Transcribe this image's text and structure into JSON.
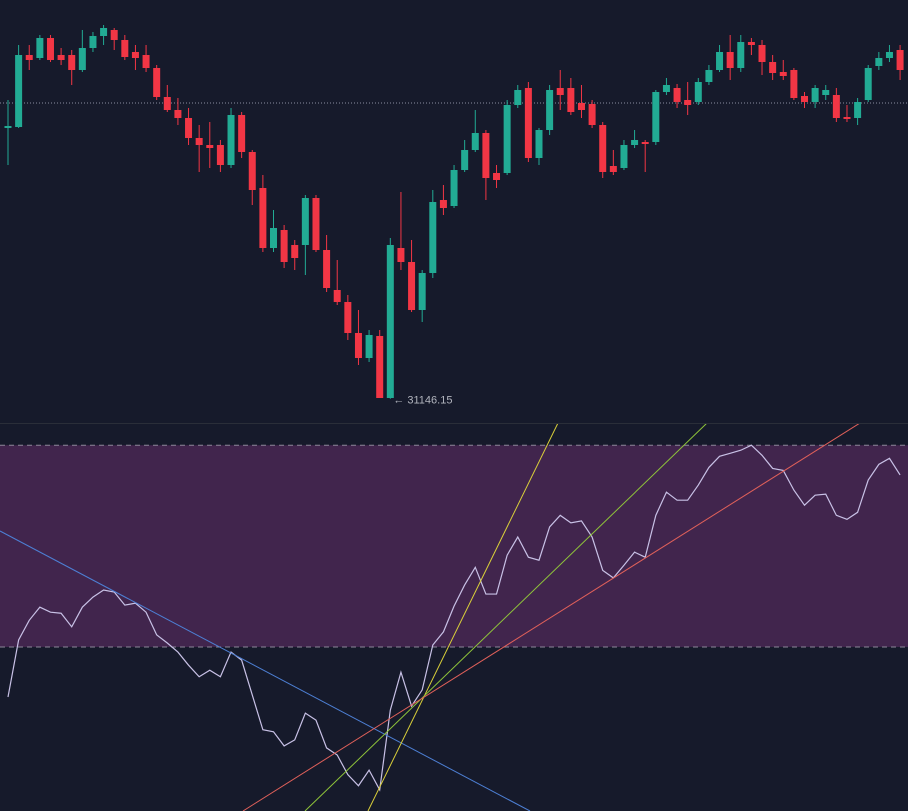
{
  "chart_data": [
    {
      "type": "candlestick",
      "up_color": "#22ab94",
      "down_color": "#f23645",
      "ylim": [
        31025,
        33140
      ],
      "price_line": 32625,
      "annotation": "← 31146.15",
      "open": [
        32500,
        32505,
        32865,
        32850,
        32950,
        32865,
        32865,
        32790,
        32900,
        32960,
        32990,
        32940,
        32880,
        32865,
        32800,
        32655,
        32590,
        32550,
        32450,
        32415,
        32415,
        32315,
        32565,
        32380,
        32200,
        31900,
        31990,
        31915,
        31915,
        32150,
        31890,
        31690,
        31630,
        31475,
        31350,
        31460,
        31150,
        31900,
        31830,
        31590,
        31775,
        32140,
        32110,
        32290,
        32390,
        32475,
        32275,
        32275,
        32615,
        32700,
        32350,
        32490,
        32700,
        32700,
        32625,
        32620,
        32515,
        32310,
        32300,
        32415,
        32430,
        32430,
        32680,
        32700,
        32640,
        32630,
        32730,
        32790,
        32880,
        32800,
        32930,
        32915,
        32830,
        32780,
        32790,
        32660,
        32630,
        32665,
        32665,
        32555,
        32550,
        32640,
        32810,
        32850,
        32890
      ],
      "high": [
        32640,
        32915,
        32915,
        32965,
        32965,
        32900,
        32890,
        32990,
        32980,
        33015,
        33000,
        32965,
        32915,
        32915,
        32815,
        32715,
        32650,
        32600,
        32515,
        32530,
        32440,
        32600,
        32580,
        32390,
        32265,
        32090,
        32015,
        31940,
        32165,
        32165,
        31965,
        31840,
        31665,
        31590,
        31490,
        31490,
        31950,
        32180,
        31940,
        31790,
        32190,
        32215,
        32315,
        32440,
        32590,
        32490,
        32315,
        32640,
        32715,
        32730,
        32500,
        32715,
        32790,
        32750,
        32715,
        32640,
        32530,
        32390,
        32440,
        32490,
        32440,
        32690,
        32750,
        32720,
        32730,
        32750,
        32815,
        32915,
        32965,
        32965,
        32950,
        32940,
        32865,
        32840,
        32800,
        32680,
        32715,
        32715,
        32700,
        32615,
        32650,
        32815,
        32880,
        32915,
        32915
      ],
      "low": [
        32315,
        32500,
        32790,
        32840,
        32830,
        32815,
        32715,
        32780,
        32880,
        32915,
        32890,
        32840,
        32790,
        32780,
        32640,
        32580,
        32515,
        32415,
        32280,
        32300,
        32280,
        32300,
        32350,
        32115,
        31880,
        31880,
        31800,
        31790,
        31765,
        31880,
        31680,
        31615,
        31440,
        31315,
        31330,
        31155,
        31146.15,
        31790,
        31580,
        31530,
        31750,
        32065,
        32100,
        32280,
        32380,
        32140,
        32200,
        32265,
        32600,
        32330,
        32315,
        32465,
        32590,
        32565,
        32550,
        32500,
        32250,
        32265,
        32290,
        32400,
        32280,
        32415,
        32665,
        32600,
        32565,
        32615,
        32715,
        32780,
        32740,
        32780,
        32865,
        32765,
        32740,
        32740,
        32640,
        32600,
        32600,
        32640,
        32530,
        32530,
        32515,
        32630,
        32790,
        32830,
        32740
      ],
      "close": [
        32510,
        32865,
        32840,
        32950,
        32840,
        32840,
        32790,
        32900,
        32960,
        33000,
        32940,
        32855,
        32850,
        32800,
        32655,
        32590,
        32550,
        32450,
        32415,
        32400,
        32315,
        32565,
        32380,
        32190,
        31900,
        32000,
        31830,
        31850,
        32150,
        31890,
        31700,
        31630,
        31475,
        31350,
        31465,
        31150,
        31915,
        31830,
        31590,
        31775,
        32130,
        32100,
        32290,
        32390,
        32475,
        32250,
        32240,
        32615,
        32690,
        32350,
        32490,
        32690,
        32665,
        32580,
        32590,
        32515,
        32280,
        32280,
        32415,
        32440,
        32420,
        32680,
        32715,
        32630,
        32615,
        32730,
        32790,
        32880,
        32800,
        32930,
        32915,
        32830,
        32775,
        32760,
        32650,
        32630,
        32700,
        32690,
        32550,
        32545,
        32630,
        32800,
        32850,
        32880,
        32790
      ]
    },
    {
      "type": "line",
      "color": "#c8c1e6",
      "band": [
        30,
        70
      ],
      "band_color": "#41254d",
      "ylim": [
        -2.5,
        74.4
      ],
      "values": [
        20.1,
        31.4,
        35.3,
        37.9,
        36.9,
        36.7,
        34.0,
        37.9,
        39.9,
        41.3,
        40.9,
        38.3,
        38.7,
        36.9,
        32.4,
        30.8,
        29.0,
        26.4,
        24.1,
        25.4,
        24.1,
        29.0,
        27.4,
        20.5,
        13.6,
        13.2,
        10.4,
        11.6,
        16.9,
        15.5,
        10.0,
        8.6,
        4.7,
        2.5,
        5.6,
        1.7,
        17.5,
        25.0,
        18.3,
        21.5,
        30.4,
        33.0,
        38.1,
        42.3,
        45.8,
        40.5,
        40.5,
        48.2,
        51.8,
        47.8,
        47.2,
        53.8,
        56.1,
        54.6,
        55.0,
        51.8,
        45.2,
        43.7,
        46.2,
        48.8,
        47.8,
        56.1,
        60.7,
        59.1,
        59.1,
        62.1,
        65.6,
        67.8,
        68.4,
        69.0,
        70.0,
        68.0,
        65.4,
        65.0,
        61.1,
        58.1,
        60.1,
        60.3,
        56.1,
        55.3,
        56.7,
        63.1,
        66.2,
        67.4,
        64.1
      ]
    }
  ]
}
